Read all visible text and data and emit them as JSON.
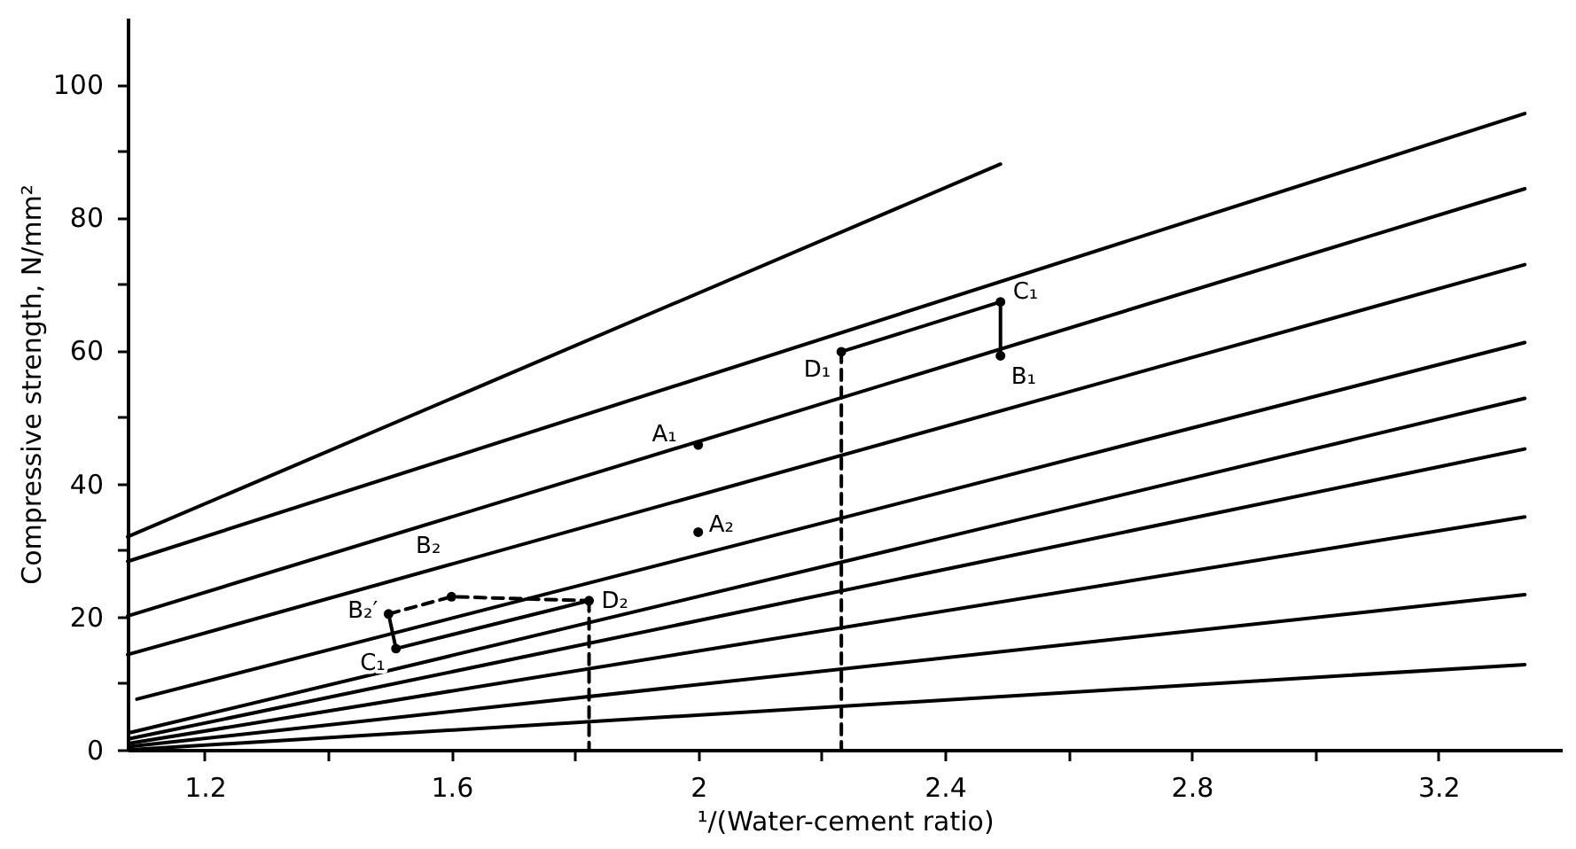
{
  "chart_data": {
    "type": "line",
    "xlabel": "¹/(Water-cement ratio)",
    "ylabel": "Compressive strength, N/mm²",
    "xlim": [
      1.075,
      3.4
    ],
    "ylim": [
      0,
      110
    ],
    "xticks": [
      1.2,
      {
        "value": 1.4,
        "label": null
      },
      1.6,
      {
        "value": 1.8,
        "label": null
      },
      2.0,
      {
        "value": 2.2,
        "label": null
      },
      2.4,
      {
        "value": 2.6,
        "label": null
      },
      2.8,
      {
        "value": 3.0,
        "label": null
      },
      3.2
    ],
    "yticks": [
      0,
      {
        "value": 10,
        "label": null
      },
      20,
      {
        "value": 30,
        "label": null
      },
      40,
      {
        "value": 50,
        "label": null
      },
      60,
      {
        "value": 70,
        "label": null
      },
      80,
      {
        "value": 90,
        "label": null
      },
      100
    ],
    "grid": false,
    "series": [
      {
        "color": "#000000",
        "x": [
          1.075,
          2.49
        ],
        "values": [
          32,
          88
        ]
      },
      {
        "color": "#000000",
        "x": [
          1.075,
          3.34
        ],
        "values": [
          28.3,
          95.6
        ]
      },
      {
        "color": "#000000",
        "x": [
          1.075,
          3.34
        ],
        "values": [
          20.1,
          84.3
        ]
      },
      {
        "color": "#000000",
        "x": [
          1.075,
          3.34
        ],
        "values": [
          14.3,
          72.9
        ]
      },
      {
        "color": "#000000",
        "x": [
          1.09,
          3.34
        ],
        "values": [
          7.6,
          61.2
        ]
      },
      {
        "color": "#000000",
        "x": [
          1.08,
          3.34
        ],
        "values": [
          2.6,
          52.8
        ]
      },
      {
        "color": "#000000",
        "x": [
          1.08,
          3.34
        ],
        "values": [
          1.7,
          45.2
        ]
      },
      {
        "color": "#000000",
        "x": [
          1.08,
          3.34
        ],
        "values": [
          1,
          35
        ]
      },
      {
        "color": "#000000",
        "x": [
          1.08,
          3.34
        ],
        "values": [
          0.5,
          23.3
        ]
      },
      {
        "color": "#000000",
        "x": [
          1.08,
          3.34
        ],
        "values": [
          0,
          12.8
        ]
      },
      {
        "color": "#000000",
        "x": [
          2.232,
          2.49,
          2.49
        ],
        "values": [
          59.8,
          67.3,
          59.2
        ]
      },
      {
        "color": "#000000",
        "x": [
          1.498,
          1.51,
          1.823
        ],
        "values": [
          20.4,
          15.2,
          22.4
        ]
      },
      {
        "color": "#000000",
        "line_style": "dashed",
        "x": [
          1.498,
          1.6,
          1.823
        ],
        "values": [
          20.4,
          23,
          22.4
        ]
      },
      {
        "color": "#000000",
        "line_style": "dashed",
        "x": [
          1.823,
          1.823
        ],
        "values": [
          22.4,
          0
        ]
      },
      {
        "color": "#000000",
        "line_style": "dashed",
        "x": [
          2.232,
          2.232
        ],
        "values": [
          59.8,
          0
        ]
      },
      {
        "type": "scatter",
        "marker": "circle",
        "color": "#000000",
        "x": [
          2.0,
          2.0,
          2.232,
          2.49,
          2.49,
          1.823,
          1.498,
          1.51,
          1.6
        ],
        "values": [
          45.8,
          32.7,
          59.8,
          67.3,
          59.2,
          22.4,
          20.4,
          15.2,
          23
        ]
      }
    ],
    "annotations": [
      {
        "text": "A₁",
        "x": 2.0,
        "y": 45.8
      },
      {
        "text": "A₂",
        "x": 2.0,
        "y": 32.7
      },
      {
        "text": "B₂",
        "x": 1.6,
        "y": 27.9
      },
      {
        "text": "B₂′",
        "x": 1.498,
        "y": 20.4
      },
      {
        "text": "C₁",
        "x": 1.51,
        "y": 15.2
      },
      {
        "text": "D₂",
        "x": 1.823,
        "y": 22.4
      },
      {
        "text": "D₁",
        "x": 2.232,
        "y": 59.8
      },
      {
        "text": "C₁",
        "x": 2.49,
        "y": 67.3
      },
      {
        "text": "B₁",
        "x": 2.49,
        "y": 59.2
      }
    ]
  }
}
